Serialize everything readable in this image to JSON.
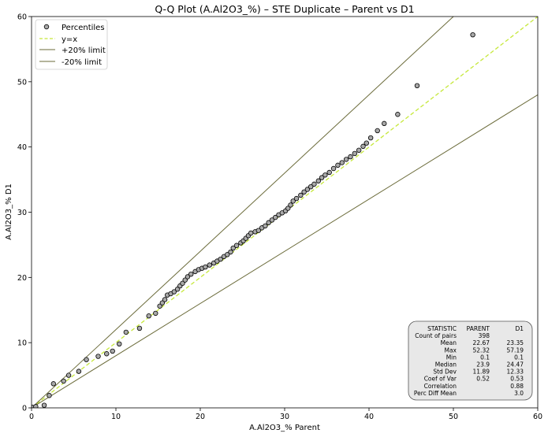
{
  "chart_data": {
    "type": "scatter",
    "title": "Q-Q Plot (A.Al2O3_%) – STE Duplicate – Parent vs D1",
    "xlabel": "A.Al2O3_% Parent",
    "ylabel": "A.Al2O3_% D1",
    "xlim": [
      0,
      60
    ],
    "ylim": [
      0,
      60
    ],
    "xticks": [
      "0",
      "10",
      "20",
      "30",
      "40",
      "50",
      "60"
    ],
    "yticks": [
      "0",
      "10",
      "20",
      "30",
      "40",
      "50",
      "60"
    ],
    "grid": false,
    "legend_position": "top-left",
    "legend": [
      {
        "label": "Percentiles",
        "kind": "marker"
      },
      {
        "label": "y=x",
        "kind": "dashed"
      },
      {
        "label": "+20% limit",
        "kind": "line"
      },
      {
        "label": "-20% limit",
        "kind": "line"
      }
    ],
    "colors": {
      "marker_fill": "#a9a9a9",
      "marker_edge": "#000000",
      "identity_line": "#c6e83b",
      "limit_line": "#6b6b3a"
    },
    "series": [
      {
        "name": "Percentiles",
        "points": [
          [
            0.1,
            0.1
          ],
          [
            0.5,
            0.2
          ],
          [
            1.5,
            0.4
          ],
          [
            2.1,
            1.9
          ],
          [
            2.6,
            3.7
          ],
          [
            3.8,
            4.1
          ],
          [
            4.4,
            5
          ],
          [
            5.6,
            5.6
          ],
          [
            6.5,
            7.4
          ],
          [
            7.9,
            7.9
          ],
          [
            8.9,
            8.3
          ],
          [
            9.6,
            8.7
          ],
          [
            10.4,
            9.8
          ],
          [
            11.2,
            11.6
          ],
          [
            12.8,
            12.2
          ],
          [
            13.9,
            14.1
          ],
          [
            14.7,
            14.5
          ],
          [
            15.2,
            15.6
          ],
          [
            15.5,
            16.1
          ],
          [
            15.8,
            16.6
          ],
          [
            16.1,
            17.3
          ],
          [
            16.5,
            17.5
          ],
          [
            16.9,
            17.8
          ],
          [
            17.3,
            18.2
          ],
          [
            17.6,
            18.7
          ],
          [
            17.9,
            19.1
          ],
          [
            18.2,
            19.6
          ],
          [
            18.5,
            20.1
          ],
          [
            18.9,
            20.5
          ],
          [
            19.4,
            20.9
          ],
          [
            19.8,
            21.2
          ],
          [
            20.2,
            21.4
          ],
          [
            20.6,
            21.6
          ],
          [
            21.1,
            21.9
          ],
          [
            21.6,
            22.2
          ],
          [
            22.0,
            22.5
          ],
          [
            22.4,
            22.8
          ],
          [
            22.8,
            23.2
          ],
          [
            23.2,
            23.5
          ],
          [
            23.6,
            23.9
          ],
          [
            23.9,
            24.5
          ],
          [
            24.3,
            24.9
          ],
          [
            24.8,
            25.3
          ],
          [
            25.1,
            25.6
          ],
          [
            25.4,
            26
          ],
          [
            25.7,
            26.4
          ],
          [
            26,
            26.8
          ],
          [
            26.5,
            27
          ],
          [
            26.9,
            27.2
          ],
          [
            27.3,
            27.6
          ],
          [
            27.7,
            27.9
          ],
          [
            28.1,
            28.4
          ],
          [
            28.5,
            28.8
          ],
          [
            28.9,
            29.2
          ],
          [
            29.3,
            29.6
          ],
          [
            29.7,
            29.9
          ],
          [
            30.1,
            30.2
          ],
          [
            30.4,
            30.6
          ],
          [
            30.7,
            31.1
          ],
          [
            31,
            31.7
          ],
          [
            31.4,
            32.1
          ],
          [
            31.9,
            32.6
          ],
          [
            32.3,
            33.1
          ],
          [
            32.7,
            33.5
          ],
          [
            33.1,
            33.9
          ],
          [
            33.5,
            34.3
          ],
          [
            34,
            34.8
          ],
          [
            34.4,
            35.3
          ],
          [
            34.8,
            35.7
          ],
          [
            35.3,
            36.1
          ],
          [
            35.8,
            36.7
          ],
          [
            36.3,
            37.2
          ],
          [
            36.8,
            37.6
          ],
          [
            37.3,
            38.1
          ],
          [
            37.8,
            38.5
          ],
          [
            38.3,
            39
          ],
          [
            38.8,
            39.5
          ],
          [
            39.3,
            40.1
          ],
          [
            39.7,
            40.6
          ],
          [
            40.2,
            41.4
          ],
          [
            41,
            42.5
          ],
          [
            41.8,
            43.6
          ],
          [
            43.4,
            45
          ],
          [
            45.7,
            49.4
          ],
          [
            52.3,
            57.2
          ]
        ]
      }
    ],
    "reference_lines": [
      {
        "name": "y=x",
        "slope": 1.0
      },
      {
        "name": "+20% limit",
        "slope": 1.2
      },
      {
        "name": "-20% limit",
        "slope": 0.8
      }
    ],
    "stats_table": {
      "columns": [
        "STATISTIC",
        "PARENT",
        "D1"
      ],
      "rows": [
        [
          "Count of pairs",
          "398",
          ""
        ],
        [
          "Mean",
          "22.67",
          "23.35"
        ],
        [
          "Max",
          "52.32",
          "57.19"
        ],
        [
          "Min",
          "0.1",
          "0.1"
        ],
        [
          "Median",
          "23.9",
          "24.47"
        ],
        [
          "Std Dev",
          "11.89",
          "12.33"
        ],
        [
          "Coef of Var",
          "0.52",
          "0.53"
        ],
        [
          "Correlation",
          "",
          "0.88"
        ],
        [
          "Perc Diff Mean",
          "",
          "3.0"
        ]
      ]
    }
  }
}
